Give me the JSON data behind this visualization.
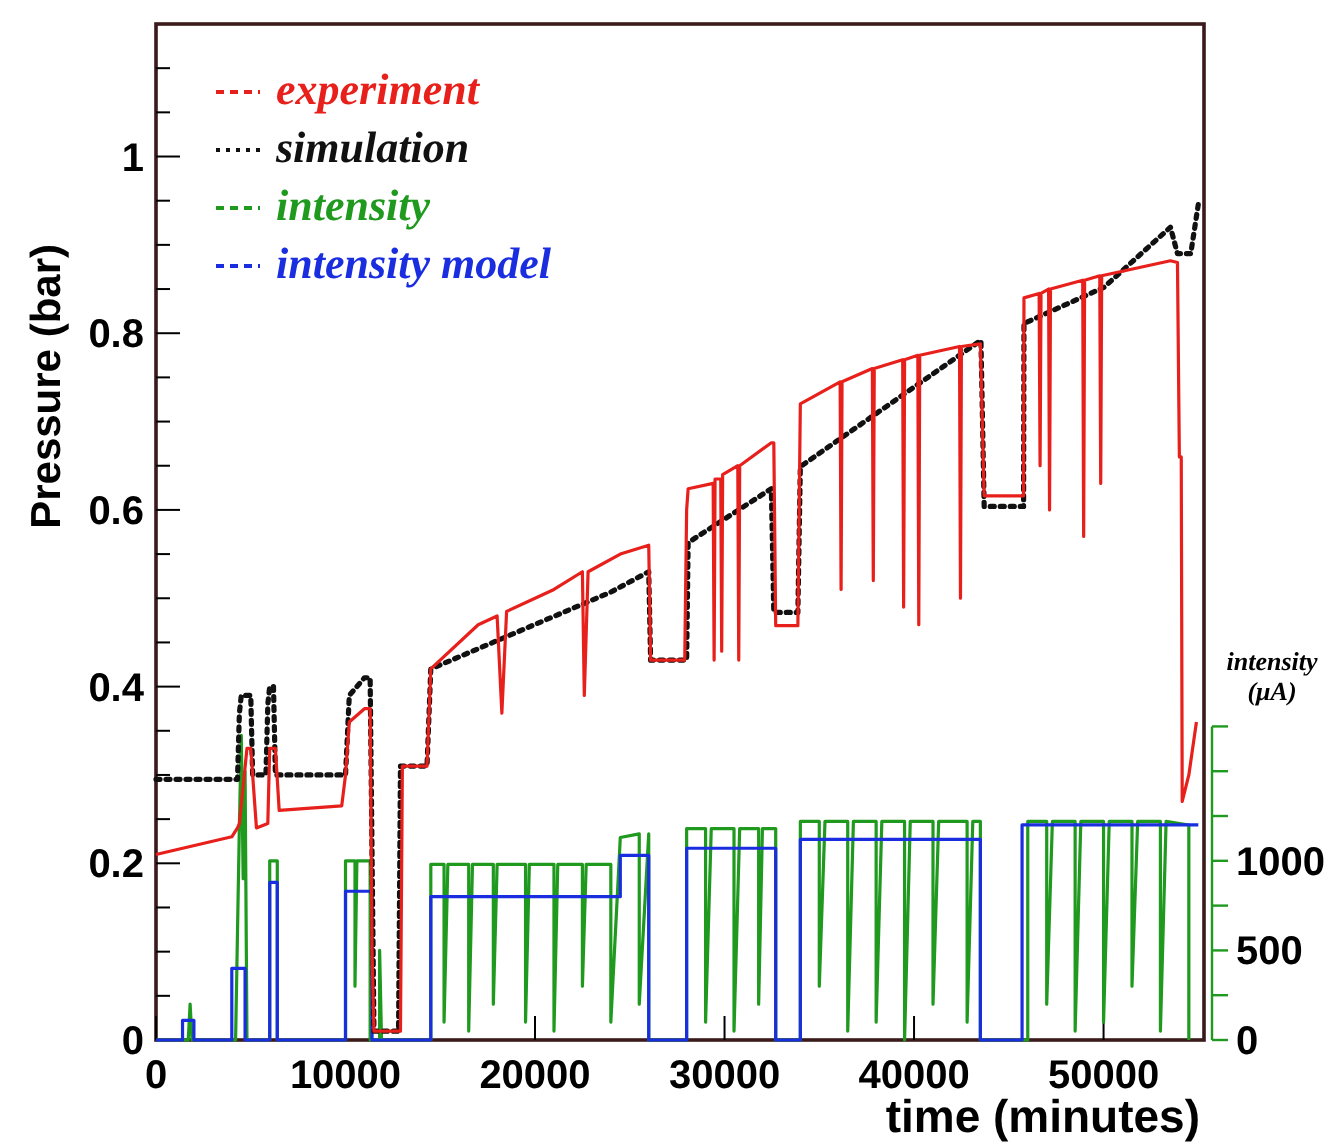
{
  "chart_data": {
    "type": "line",
    "xlabel": "time (minutes)",
    "ylabel": "Pressure (bar)",
    "y2label": "intensity (μA)",
    "xlim": [
      0,
      55300
    ],
    "xticks": [
      0,
      10000,
      20000,
      30000,
      40000,
      50000
    ],
    "ylim": [
      0,
      1.15
    ],
    "yticks": [
      0,
      {
        "value": 0.05,
        "label": null
      },
      {
        "value": 0.1,
        "label": null
      },
      {
        "value": 0.15,
        "label": null
      },
      0.2,
      {
        "value": 0.25,
        "label": null
      },
      {
        "value": 0.3,
        "label": null
      },
      {
        "value": 0.35,
        "label": null
      },
      0.4,
      {
        "value": 0.45,
        "label": null
      },
      {
        "value": 0.5,
        "label": null
      },
      {
        "value": 0.55,
        "label": null
      },
      0.6,
      {
        "value": 0.65,
        "label": null
      },
      {
        "value": 0.7,
        "label": null
      },
      {
        "value": 0.75,
        "label": null
      },
      0.8,
      {
        "value": 0.85,
        "label": null
      },
      {
        "value": 0.9,
        "label": null
      },
      {
        "value": 0.95,
        "label": null
      },
      1,
      {
        "value": 1.05,
        "label": null
      },
      {
        "value": 1.1,
        "label": null
      }
    ],
    "y2lim": [
      0,
      5670
    ],
    "y2ticks": [
      0,
      {
        "value": 250,
        "label": null
      },
      500,
      {
        "value": 750,
        "label": null
      },
      1000,
      {
        "value": 1250,
        "label": null
      },
      {
        "value": 1500,
        "label": null
      },
      {
        "value": 1750,
        "label": null
      }
    ],
    "legend": "top left",
    "grid": false,
    "series": [
      {
        "name": "experiment",
        "color": "#e8201c",
        "line_style": "solid",
        "x": [
          0,
          4000,
          4300,
          4400,
          4800,
          5000,
          5300,
          5900,
          6000,
          6300,
          6500,
          9800,
          10000,
          10200,
          11000,
          11300,
          11400,
          11500,
          12900,
          13000,
          14300,
          14500,
          17000,
          18000,
          18250,
          18500,
          21000,
          22500,
          22600,
          22800,
          24500,
          26000,
          26100,
          27900,
          28000,
          28080,
          29400,
          29450,
          29500,
          29800,
          29850,
          29900,
          30700,
          30750,
          30800,
          32470,
          32600,
          32700,
          33870,
          34000,
          36100,
          36150,
          36200,
          37800,
          37850,
          37900,
          39400,
          39450,
          39500,
          40200,
          40250,
          40300,
          42400,
          42450,
          42500,
          43500,
          43700,
          45780,
          45800,
          46600,
          46650,
          46700,
          47100,
          47150,
          47200,
          48900,
          48950,
          49000,
          49800,
          49850,
          49900,
          53530,
          53900,
          54000,
          54100,
          54150,
          54500,
          54900
        ],
        "values": [
          0.21,
          0.23,
          0.24,
          0.245,
          0.33,
          0.33,
          0.24,
          0.245,
          0.33,
          0.33,
          0.26,
          0.265,
          0.3,
          0.36,
          0.375,
          0.375,
          0.1,
          0.01,
          0.01,
          0.31,
          0.31,
          0.42,
          0.47,
          0.48,
          0.37,
          0.485,
          0.51,
          0.53,
          0.39,
          0.53,
          0.55,
          0.56,
          0.43,
          0.43,
          0.6,
          0.624,
          0.63,
          0.43,
          0.635,
          0.635,
          0.44,
          0.64,
          0.65,
          0.43,
          0.65,
          0.676,
          0.676,
          0.469,
          0.469,
          0.72,
          0.745,
          0.51,
          0.745,
          0.76,
          0.52,
          0.76,
          0.77,
          0.49,
          0.77,
          0.775,
          0.47,
          0.775,
          0.785,
          0.5,
          0.785,
          0.788,
          0.616,
          0.616,
          0.84,
          0.845,
          0.65,
          0.845,
          0.85,
          0.6,
          0.85,
          0.86,
          0.57,
          0.86,
          0.865,
          0.63,
          0.865,
          0.882,
          0.88,
          0.66,
          0.66,
          0.27,
          0.3,
          0.36
        ]
      },
      {
        "name": "simulation",
        "color": "#111111",
        "line_style": "dotted",
        "x": [
          0,
          4300,
          4400,
          4500,
          5000,
          5100,
          5800,
          5900,
          6000,
          6200,
          6300,
          10000,
          10200,
          11000,
          11300,
          11500,
          12800,
          12900,
          14300,
          14500,
          24000,
          26000,
          26100,
          28000,
          28080,
          32470,
          32600,
          33870,
          34000,
          43530,
          43700,
          45780,
          45800,
          50020,
          53530,
          53900,
          54600,
          55000
        ],
        "values": [
          0.295,
          0.295,
          0.37,
          0.39,
          0.39,
          0.3,
          0.3,
          0.38,
          0.4,
          0.4,
          0.3,
          0.3,
          0.39,
          0.41,
          0.41,
          0.01,
          0.01,
          0.31,
          0.31,
          0.42,
          0.507,
          0.53,
          0.43,
          0.43,
          0.563,
          0.624,
          0.484,
          0.484,
          0.649,
          0.792,
          0.604,
          0.604,
          0.811,
          0.852,
          0.92,
          0.89,
          0.89,
          0.946
        ]
      },
      {
        "name": "intensity",
        "color": "#1f9a1f",
        "line_style": "solid",
        "axis": "y2",
        "x": [
          0,
          1700,
          1800,
          1900,
          4200,
          4300,
          4400,
          4500,
          4600,
          4700,
          4800,
          6000,
          6000,
          6400,
          6400,
          10000,
          10000,
          10500,
          10500,
          10600,
          11300,
          11300,
          11800,
          11800,
          11900,
          14500,
          14500,
          15200,
          15200,
          15400,
          16500,
          16500,
          16700,
          17800,
          17800,
          18000,
          19500,
          19500,
          19700,
          21000,
          21000,
          21200,
          22500,
          22500,
          22700,
          24000,
          24000,
          24500,
          25500,
          25500,
          26000,
          26000,
          28000,
          28000,
          29000,
          29000,
          29300,
          30500,
          30500,
          30800,
          31800,
          31800,
          32000,
          32700,
          32700,
          34000,
          34000,
          35000,
          35000,
          35300,
          36500,
          36500,
          36800,
          38000,
          38000,
          38300,
          39500,
          39500,
          39800,
          41000,
          41000,
          41300,
          42800,
          42800,
          43100,
          43500,
          43500,
          46000,
          46000,
          47000,
          47000,
          47300,
          48500,
          48500,
          48800,
          50000,
          50000,
          50300,
          51500,
          51500,
          51800,
          53000,
          53000,
          53300,
          54500,
          54500
        ],
        "values": [
          0,
          0,
          200,
          0,
          0,
          600,
          1200,
          1700,
          900,
          1500,
          0,
          0,
          1000,
          1000,
          0,
          0,
          1000,
          1000,
          300,
          1000,
          1000,
          0,
          0,
          500,
          0,
          0,
          980,
          980,
          100,
          980,
          980,
          50,
          980,
          980,
          200,
          980,
          980,
          100,
          980,
          980,
          50,
          980,
          980,
          300,
          980,
          980,
          100,
          1130,
          1150,
          200,
          1150,
          0,
          0,
          1180,
          1180,
          100,
          1180,
          1180,
          50,
          1180,
          1180,
          200,
          1180,
          1180,
          0,
          0,
          1220,
          1220,
          300,
          1220,
          1220,
          50,
          1220,
          1220,
          100,
          1220,
          1220,
          0,
          1220,
          1220,
          200,
          1220,
          1220,
          100,
          1220,
          1220,
          0,
          0,
          1220,
          1220,
          200,
          1220,
          1220,
          50,
          1220,
          1220,
          100,
          1220,
          1220,
          300,
          1220,
          1220,
          50,
          1220,
          1200,
          0
        ]
      },
      {
        "name": "intensity model",
        "color": "#1a2ee0",
        "type": "step",
        "line_style": "solid",
        "axis": "y2",
        "x": [
          0,
          1400,
          2000,
          4000,
          4700,
          6000,
          6400,
          10000,
          11400,
          14500,
          24500,
          26000,
          28000,
          32700,
          34000,
          43500,
          45700,
          55000
        ],
        "values": [
          0,
          110,
          0,
          400,
          0,
          880,
          0,
          830,
          0,
          800,
          1030,
          0,
          1070,
          0,
          1120,
          0,
          1200,
          1200
        ]
      }
    ]
  }
}
